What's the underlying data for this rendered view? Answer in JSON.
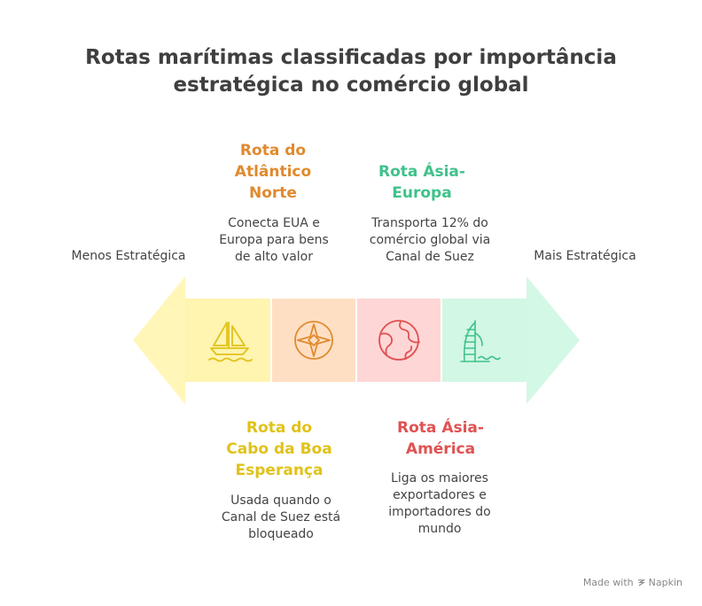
{
  "title": {
    "line1": "Rotas marítimas classificadas por importância",
    "line2": "estratégica no comércio global"
  },
  "scale": {
    "left_label": "Menos Estratégica",
    "right_label": "Mais Estratégica"
  },
  "routes": [
    {
      "heading": [
        "Rota do",
        "Cabo da Boa",
        "Esperança"
      ],
      "description": [
        "Usada quando o",
        "Canal de Suez está",
        "bloqueado"
      ],
      "color": "#e0c21a",
      "fill": "#fff4b0",
      "icon": "sailboat-icon",
      "position": "bottom"
    },
    {
      "heading": [
        "Rota do",
        "Atlântico",
        "Norte"
      ],
      "description": [
        "Conecta EUA e",
        "Europa para bens",
        "de alto valor"
      ],
      "color": "#e08a2e",
      "fill": "#ffdfc4",
      "icon": "compass-rose-icon",
      "position": "top"
    },
    {
      "heading": [
        "Rota Ásia-",
        "América"
      ],
      "description": [
        "Liga os maiores",
        "exportadores e",
        "importadores do",
        "mundo"
      ],
      "color": "#e05252",
      "fill": "#ffd6d6",
      "icon": "globe-icon",
      "position": "bottom"
    },
    {
      "heading": [
        "Rota Ásia-",
        "Europa"
      ],
      "description": [
        "Transporta 12% do",
        "comércio global via",
        "Canal de Suez"
      ],
      "color": "#3fc28a",
      "fill": "#d2f7e4",
      "icon": "burj-al-arab-icon",
      "position": "top"
    }
  ],
  "arrow_colors": {
    "left": "#fff6b8",
    "right": "#d4f8e6"
  },
  "footer": {
    "made_with": "Made with",
    "brand": "Napkin"
  }
}
